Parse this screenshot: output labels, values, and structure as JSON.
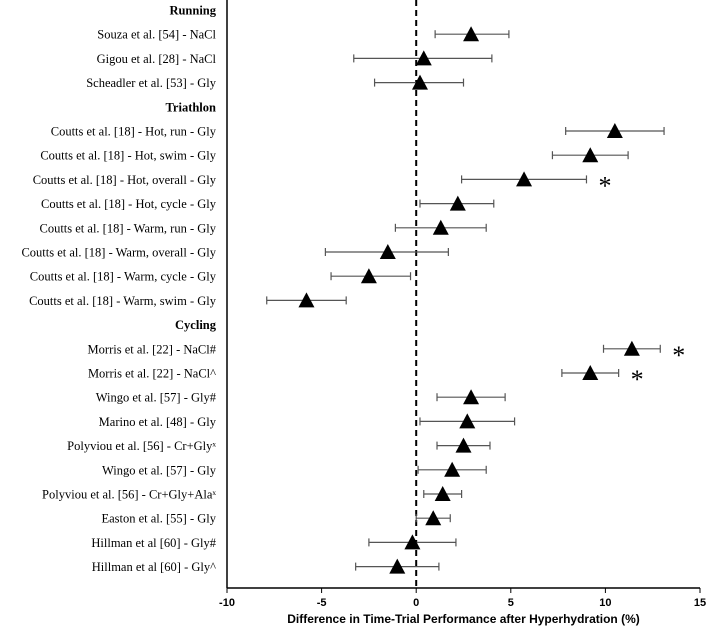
{
  "chart_data": {
    "type": "forest",
    "xlabel": "Difference in Time-Trial Performance after Hyperhydration (%)",
    "xlim": [
      -10,
      15
    ],
    "xticks": [
      -10,
      -5,
      0,
      5,
      10,
      15
    ],
    "reference_line": 0,
    "groups": [
      {
        "name": "Running",
        "rows": [
          {
            "label": "Souza et al. [54] - NaCl",
            "mean": 2.9,
            "lower": 1.0,
            "upper": 4.9
          },
          {
            "label": "Gigou et al. [28] - NaCl",
            "mean": 0.4,
            "lower": -3.3,
            "upper": 4.0
          },
          {
            "label": "Scheadler et al. [53] - Gly",
            "mean": 0.2,
            "lower": -2.2,
            "upper": 2.5
          }
        ]
      },
      {
        "name": "Triathlon",
        "rows": [
          {
            "label": "Coutts et al. [18] - Hot, run - Gly",
            "mean": 10.5,
            "lower": 7.9,
            "upper": 13.1
          },
          {
            "label": "Coutts et al. [18] - Hot, swim - Gly",
            "mean": 9.2,
            "lower": 7.2,
            "upper": 11.2
          },
          {
            "label": "Coutts et al. [18] - Hot, overall - Gly",
            "mean": 5.7,
            "lower": 2.4,
            "upper": 9.0,
            "significant": true
          },
          {
            "label": "Coutts et al. [18] - Hot, cycle - Gly",
            "mean": 2.2,
            "lower": 0.2,
            "upper": 4.1
          },
          {
            "label": "Coutts et al. [18] - Warm, run - Gly",
            "mean": 1.3,
            "lower": -1.1,
            "upper": 3.7
          },
          {
            "label": "Coutts et al. [18] - Warm, overall - Gly",
            "mean": -1.5,
            "lower": -4.8,
            "upper": 1.7
          },
          {
            "label": "Coutts et al. [18] - Warm, cycle - Gly",
            "mean": -2.5,
            "lower": -4.5,
            "upper": -0.3
          },
          {
            "label": "Coutts et al. [18] - Warm, swim - Gly",
            "mean": -5.8,
            "lower": -7.9,
            "upper": -3.7
          }
        ]
      },
      {
        "name": "Cycling",
        "rows": [
          {
            "label": "Morris et al. [22] - NaCl#",
            "mean": 11.4,
            "lower": 9.9,
            "upper": 12.9,
            "significant": true
          },
          {
            "label": "Morris et al. [22] - NaCl^",
            "mean": 9.2,
            "lower": 7.7,
            "upper": 10.7,
            "significant": true
          },
          {
            "label": "Wingo et al. [57] - Gly#",
            "mean": 2.9,
            "lower": 1.1,
            "upper": 4.7
          },
          {
            "label": "Marino et al. [48] - Gly",
            "mean": 2.7,
            "lower": 0.2,
            "upper": 5.2
          },
          {
            "label": "Polyviou et al. [56] - Cr+Glyˣ",
            "mean": 2.5,
            "lower": 1.1,
            "upper": 3.9
          },
          {
            "label": "Wingo et al. [57] - Gly",
            "mean": 1.9,
            "lower": 0.1,
            "upper": 3.7
          },
          {
            "label": "Polyviou et al. [56] - Cr+Gly+Alaˣ",
            "mean": 1.4,
            "lower": 0.4,
            "upper": 2.4
          },
          {
            "label": "Easton et al. [55] - Gly",
            "mean": 0.9,
            "lower": 0.0,
            "upper": 1.8
          },
          {
            "label": "Hillman et al [60] - Gly#",
            "mean": -0.2,
            "lower": -2.5,
            "upper": 2.1
          },
          {
            "label": "Hillman et al [60] - Gly^",
            "mean": -1.0,
            "lower": -3.2,
            "upper": 1.2
          }
        ]
      }
    ],
    "significance_marker": "*"
  }
}
